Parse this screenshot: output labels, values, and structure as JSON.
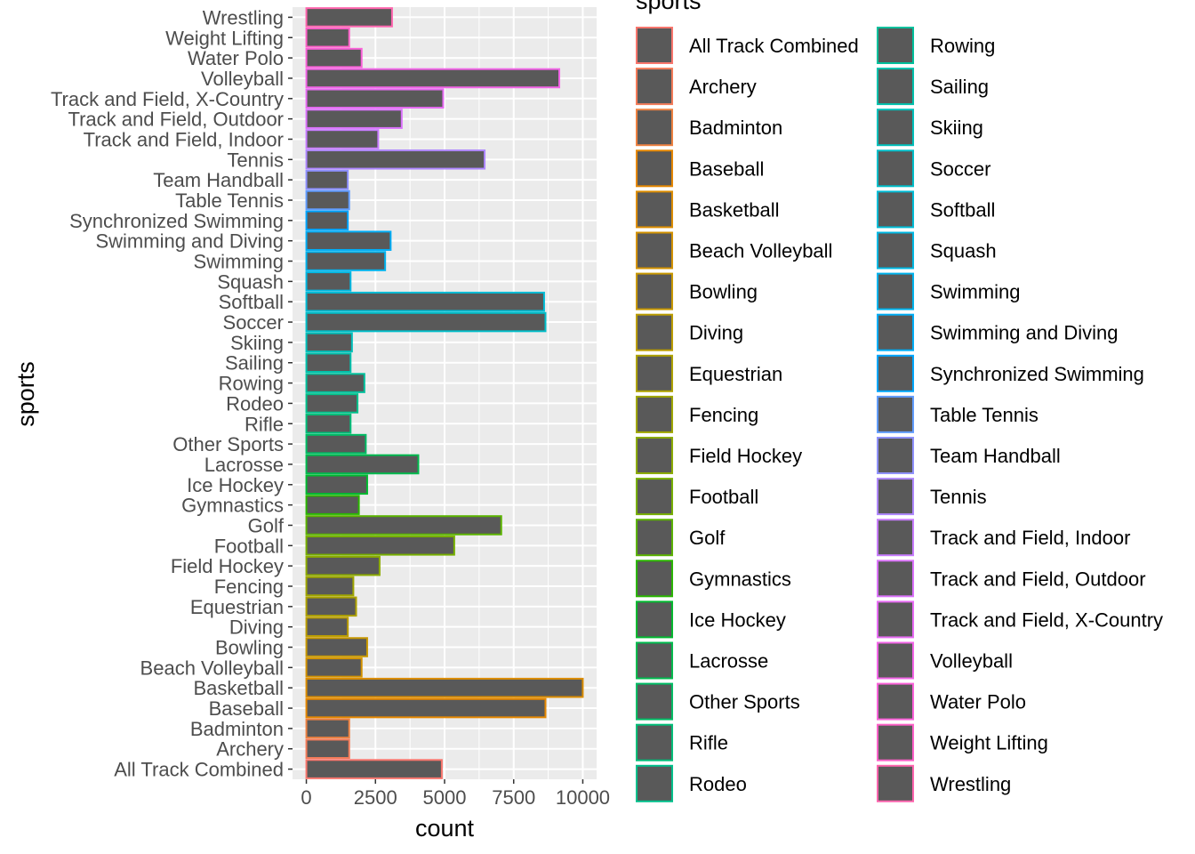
{
  "chart_data": {
    "type": "bar",
    "orientation": "horizontal",
    "xlabel": "count",
    "ylabel": "sports",
    "xlim": [
      -500,
      10500
    ],
    "x_ticks": [
      0,
      2500,
      5000,
      7500,
      10000
    ],
    "x_tick_labels": [
      "0",
      "2500",
      "5000",
      "7500",
      "10000"
    ],
    "grid": true,
    "bar_fill": "#595959",
    "panel_background": "#ebebeb",
    "legend": {
      "title": "sports",
      "position": "right",
      "columns": 2
    },
    "categories": [
      "All Track Combined",
      "Archery",
      "Badminton",
      "Baseball",
      "Basketball",
      "Beach Volleyball",
      "Bowling",
      "Diving",
      "Equestrian",
      "Fencing",
      "Field Hockey",
      "Football",
      "Golf",
      "Gymnastics",
      "Ice Hockey",
      "Lacrosse",
      "Other Sports",
      "Rifle",
      "Rodeo",
      "Rowing",
      "Sailing",
      "Skiing",
      "Soccer",
      "Softball",
      "Squash",
      "Swimming",
      "Swimming and Diving",
      "Synchronized Swimming",
      "Table Tennis",
      "Team Handball",
      "Tennis",
      "Track and Field, Indoor",
      "Track and Field, Outdoor",
      "Track and Field, X-Country",
      "Volleyball",
      "Water Polo",
      "Weight Lifting",
      "Wrestling"
    ],
    "values": [
      4900,
      1550,
      1550,
      8650,
      10000,
      2000,
      2200,
      1500,
      1800,
      1700,
      2650,
      5350,
      7050,
      1900,
      2200,
      4050,
      2150,
      1600,
      1850,
      2100,
      1600,
      1650,
      8650,
      8600,
      1600,
      2850,
      3050,
      1500,
      1550,
      1500,
      6450,
      2600,
      3450,
      4950,
      9150,
      2000,
      1550,
      3100
    ],
    "colors": [
      "#F8766D",
      "#F37B59",
      "#ED8141",
      "#E58700",
      "#DC8D00",
      "#D39200",
      "#C89800",
      "#BB9D00",
      "#AEA200",
      "#9FA600",
      "#8CAB00",
      "#77AF00",
      "#5BB300",
      "#2AB600",
      "#00B92F",
      "#00BB4E",
      "#00BD65",
      "#00BE79",
      "#00C08B",
      "#00C09C",
      "#00C1AC",
      "#00C0BB",
      "#00BEC9",
      "#00BCD6",
      "#00B8E3",
      "#00B3ED",
      "#00ADF6",
      "#00A6FF",
      "#619CFF",
      "#8F91FF",
      "#AE87FF",
      "#C77CFF",
      "#DA72FB",
      "#E76BF3",
      "#F265E7",
      "#FA62D9",
      "#FE61C8",
      "#FF65AE"
    ]
  }
}
